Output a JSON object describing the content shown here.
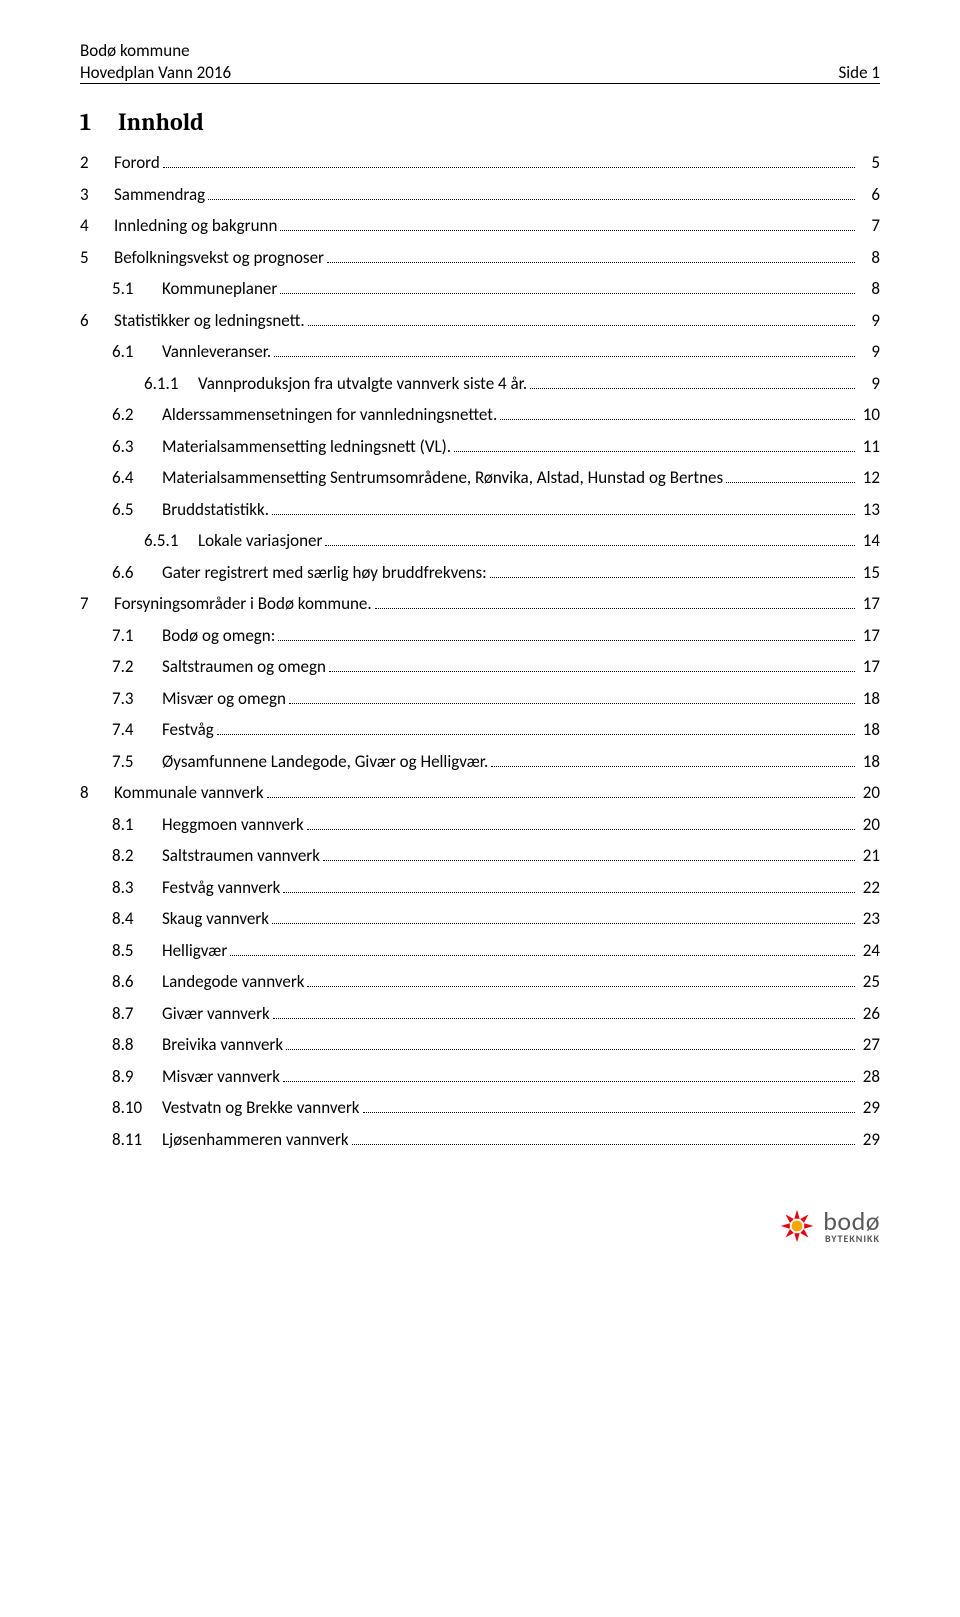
{
  "header": {
    "org": "Bodø kommune",
    "doc": "Hovedplan Vann 2016",
    "side": "Side 1"
  },
  "title": {
    "num": "1",
    "text": "Innhold"
  },
  "toc": [
    {
      "level": 0,
      "num": "2",
      "label": "Forord",
      "page": "5"
    },
    {
      "level": 0,
      "num": "3",
      "label": "Sammendrag",
      "page": "6"
    },
    {
      "level": 0,
      "num": "4",
      "label": "Innledning og bakgrunn",
      "page": "7"
    },
    {
      "level": 0,
      "num": "5",
      "label": "Befolkningsvekst og prognoser",
      "page": "8"
    },
    {
      "level": 1,
      "num": "5.1",
      "label": "Kommuneplaner",
      "page": "8"
    },
    {
      "level": 0,
      "num": "6",
      "label": "Statistikker og ledningsnett.",
      "page": "9"
    },
    {
      "level": 1,
      "num": "6.1",
      "label": "Vannleveranser.",
      "page": "9"
    },
    {
      "level": 2,
      "num": "6.1.1",
      "label": "Vannproduksjon fra utvalgte vannverk siste 4 år.",
      "page": "9"
    },
    {
      "level": 1,
      "num": "6.2",
      "label": "Alderssammensetningen for vannledningsnettet.",
      "page": "10"
    },
    {
      "level": 1,
      "num": "6.3",
      "label": "Materialsammensetting ledningsnett (VL).",
      "page": "11"
    },
    {
      "level": 1,
      "num": "6.4",
      "label": "Materialsammensetting Sentrumsområdene, Rønvika, Alstad, Hunstad og Bertnes",
      "page": "12"
    },
    {
      "level": 1,
      "num": "6.5",
      "label": "Bruddstatistikk.",
      "page": "13"
    },
    {
      "level": 2,
      "num": "6.5.1",
      "label": "Lokale variasjoner",
      "page": "14"
    },
    {
      "level": 1,
      "num": "6.6",
      "label": "Gater registrert med særlig høy bruddfrekvens:",
      "page": "15"
    },
    {
      "level": 0,
      "num": "7",
      "label": "Forsyningsområder i Bodø kommune.",
      "page": "17"
    },
    {
      "level": 1,
      "num": "7.1",
      "label": "Bodø og omegn:",
      "page": "17"
    },
    {
      "level": 1,
      "num": "7.2",
      "label": "Saltstraumen og omegn",
      "page": "17"
    },
    {
      "level": 1,
      "num": "7.3",
      "label": "Misvær og omegn",
      "page": "18"
    },
    {
      "level": 1,
      "num": "7.4",
      "label": "Festvåg",
      "page": "18"
    },
    {
      "level": 1,
      "num": "7.5",
      "label": "Øysamfunnene Landegode, Givær og Helligvær.",
      "page": "18"
    },
    {
      "level": 0,
      "num": "8",
      "label": "Kommunale vannverk",
      "page": "20"
    },
    {
      "level": 1,
      "num": "8.1",
      "label": "Heggmoen vannverk",
      "page": "20"
    },
    {
      "level": 1,
      "num": "8.2",
      "label": "Saltstraumen vannverk",
      "page": "21"
    },
    {
      "level": 1,
      "num": "8.3",
      "label": "Festvåg vannverk",
      "page": "22"
    },
    {
      "level": 1,
      "num": "8.4",
      "label": "Skaug vannverk",
      "page": "23"
    },
    {
      "level": 1,
      "num": "8.5",
      "label": "Helligvær",
      "page": "24"
    },
    {
      "level": 1,
      "num": "8.6",
      "label": "Landegode vannverk",
      "page": "25"
    },
    {
      "level": 1,
      "num": "8.7",
      "label": "Givær vannverk",
      "page": "26"
    },
    {
      "level": 1,
      "num": "8.8",
      "label": "Breivika vannverk",
      "page": "27"
    },
    {
      "level": 1,
      "num": "8.9",
      "label": "Misvær vannverk",
      "page": "28"
    },
    {
      "level": 1,
      "num": "8.10",
      "label": "Vestvatn og Brekke vannverk",
      "page": "29"
    },
    {
      "level": 1,
      "num": "8.11",
      "label": "Ljøsenhammeren vannverk",
      "page": "29"
    }
  ],
  "footer": {
    "logo_main": "bodø",
    "logo_sub": "BYTEKNIKK",
    "sun_color": "#e30613",
    "sun_accent": "#f7a600",
    "text_color": "#58585a"
  }
}
